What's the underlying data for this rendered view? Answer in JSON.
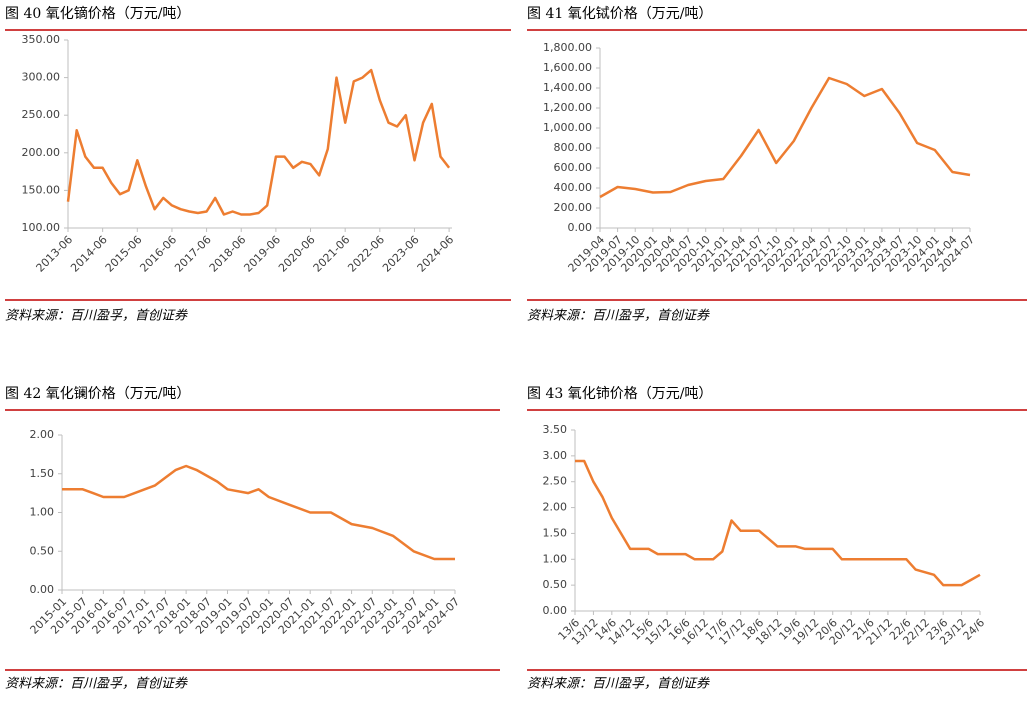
{
  "chart_data": [
    {
      "type": "line",
      "title": "图 40 氧化镝价格（万元/吨）",
      "source": "资料来源：百川盈孚，首创证券",
      "color": "#ed7d31",
      "x": [
        "2013-06",
        "2013-09",
        "2013-12",
        "2014-03",
        "2014-06",
        "2014-09",
        "2014-12",
        "2015-03",
        "2015-06",
        "2015-09",
        "2015-12",
        "2016-03",
        "2016-06",
        "2016-09",
        "2016-12",
        "2017-03",
        "2017-06",
        "2017-09",
        "2017-12",
        "2018-03",
        "2018-06",
        "2018-09",
        "2018-12",
        "2019-03",
        "2019-06",
        "2019-09",
        "2019-12",
        "2020-03",
        "2020-06",
        "2020-09",
        "2020-12",
        "2021-03",
        "2021-06",
        "2021-09",
        "2021-12",
        "2022-03",
        "2022-06",
        "2022-09",
        "2022-12",
        "2023-03",
        "2023-06",
        "2023-09",
        "2023-12",
        "2024-03",
        "2024-06"
      ],
      "values": [
        135,
        230,
        195,
        180,
        180,
        160,
        145,
        150,
        190,
        155,
        125,
        140,
        130,
        125,
        122,
        120,
        122,
        140,
        118,
        122,
        118,
        118,
        120,
        130,
        195,
        195,
        180,
        188,
        185,
        170,
        205,
        300,
        240,
        295,
        300,
        310,
        270,
        240,
        235,
        250,
        190,
        240,
        265,
        195,
        180
      ],
      "xlim": [
        "2013-06",
        "2024-07"
      ],
      "xticks": [
        "2013-06",
        "2014-06",
        "2015-06",
        "2016-06",
        "2017-06",
        "2018-06",
        "2019-06",
        "2020-06",
        "2021-06",
        "2022-06",
        "2023-06",
        "2024-06"
      ],
      "ylim": [
        100,
        350
      ],
      "yticks": [
        {
          "value": 100,
          "label": "100.00"
        },
        {
          "value": 150,
          "label": "150.00"
        },
        {
          "value": 200,
          "label": "200.00"
        },
        {
          "value": 250,
          "label": "250.00"
        },
        {
          "value": 300,
          "label": "300.00"
        },
        {
          "value": 350,
          "label": "350.00"
        }
      ]
    },
    {
      "type": "line",
      "title": "图 41 氧化铽价格（万元/吨）",
      "source": "资料来源：百川盈孚，首创证券",
      "color": "#ed7d31",
      "x": [
        "2019-04",
        "2019-07",
        "2019-10",
        "2020-01",
        "2020-04",
        "2020-07",
        "2020-10",
        "2021-01",
        "2021-04",
        "2021-07",
        "2021-10",
        "2022-01",
        "2022-04",
        "2022-07",
        "2022-10",
        "2023-01",
        "2023-04",
        "2023-07",
        "2023-10",
        "2024-01",
        "2024-04",
        "2024-07"
      ],
      "values": [
        310,
        410,
        390,
        355,
        360,
        430,
        470,
        490,
        720,
        980,
        650,
        870,
        1200,
        1500,
        1440,
        1320,
        1390,
        1150,
        850,
        780,
        560,
        530
      ],
      "xlim": [
        "2019-04",
        "2024-07"
      ],
      "xticks": [
        "2019-04",
        "2019-07",
        "2019-10",
        "2020-01",
        "2020-04",
        "2020-07",
        "2020-10",
        "2021-01",
        "2021-04",
        "2021-07",
        "2021-10",
        "2022-01",
        "2022-04",
        "2022-07",
        "2022-10",
        "2023-01",
        "2023-04",
        "2023-07",
        "2023-10",
        "2024-01",
        "2024-04",
        "2024-07"
      ],
      "ylim": [
        0,
        1800
      ],
      "yticks": [
        {
          "value": 0,
          "label": "0.00"
        },
        {
          "value": 200,
          "label": "200.00"
        },
        {
          "value": 400,
          "label": "400.00"
        },
        {
          "value": 600,
          "label": "600.00"
        },
        {
          "value": 800,
          "label": "800.00"
        },
        {
          "value": 1000,
          "label": "1,000.00"
        },
        {
          "value": 1200,
          "label": "1,200.00"
        },
        {
          "value": 1400,
          "label": "1,400.00"
        },
        {
          "value": 1600,
          "label": "1,600.00"
        },
        {
          "value": 1800,
          "label": "1,800.00"
        }
      ]
    },
    {
      "type": "line",
      "title": "图 42 氧化镧价格（万元/吨）",
      "source": "资料来源：百川盈孚，首创证券",
      "color": "#ed7d31",
      "x": [
        "2015-01",
        "2015-07",
        "2015-10",
        "2016-01",
        "2016-07",
        "2017-01",
        "2017-04",
        "2017-07",
        "2017-10",
        "2018-01",
        "2018-04",
        "2018-10",
        "2019-01",
        "2019-07",
        "2019-10",
        "2020-01",
        "2020-07",
        "2021-01",
        "2021-07",
        "2022-01",
        "2022-07",
        "2023-01",
        "2023-07",
        "2024-01",
        "2024-07"
      ],
      "values": [
        1.3,
        1.3,
        1.25,
        1.2,
        1.2,
        1.3,
        1.35,
        1.45,
        1.55,
        1.6,
        1.55,
        1.4,
        1.3,
        1.25,
        1.3,
        1.2,
        1.1,
        1.0,
        1.0,
        0.85,
        0.8,
        0.7,
        0.5,
        0.4,
        0.4
      ],
      "xlim": [
        "2015-01",
        "2024-07"
      ],
      "xticks": [
        "2015-01",
        "2015-07",
        "2016-01",
        "2016-07",
        "2017-01",
        "2017-07",
        "2018-01",
        "2018-07",
        "2019-01",
        "2019-07",
        "2020-01",
        "2020-07",
        "2021-01",
        "2021-07",
        "2022-01",
        "2022-07",
        "2023-01",
        "2023-07",
        "2024-01",
        "2024-07"
      ],
      "ylim": [
        0,
        2
      ],
      "yticks": [
        {
          "value": 0,
          "label": "0.00"
        },
        {
          "value": 0.5,
          "label": "0.50"
        },
        {
          "value": 1,
          "label": "1.00"
        },
        {
          "value": 1.5,
          "label": "1.50"
        },
        {
          "value": 2,
          "label": "2.00"
        }
      ]
    },
    {
      "type": "line",
      "title": "图 43 氧化铈价格（万元/吨）",
      "source": "资料来源：百川盈孚，首创证券",
      "color": "#ed7d31",
      "x": [
        "13/6",
        "13/9",
        "13/12",
        "14/3",
        "14/6",
        "14/9",
        "14/12",
        "15/6",
        "15/9",
        "16/6",
        "16/9",
        "17/3",
        "17/6",
        "17/9",
        "17/12",
        "18/6",
        "18/9",
        "18/12",
        "19/6",
        "19/9",
        "20/6",
        "20/9",
        "22/6",
        "22/9",
        "23/3",
        "23/6",
        "23/12",
        "24/3",
        "24/6"
      ],
      "values": [
        2.9,
        2.9,
        2.5,
        2.2,
        1.8,
        1.5,
        1.2,
        1.2,
        1.1,
        1.1,
        1.0,
        1.0,
        1.15,
        1.75,
        1.55,
        1.55,
        1.4,
        1.25,
        1.25,
        1.2,
        1.2,
        1.0,
        1.0,
        0.8,
        0.7,
        0.5,
        0.5,
        0.6,
        0.7
      ],
      "xlim": [
        "13/6",
        "24/6"
      ],
      "xticks": [
        "13/6",
        "13/12",
        "14/6",
        "14/12",
        "15/6",
        "15/12",
        "16/6",
        "16/12",
        "17/6",
        "17/12",
        "18/6",
        "18/12",
        "19/6",
        "19/12",
        "20/6",
        "20/12",
        "21/6",
        "21/12",
        "22/6",
        "22/12",
        "23/6",
        "23/12",
        "24/6"
      ],
      "ylim": [
        0,
        3.5
      ],
      "yticks": [
        {
          "value": 0,
          "label": "0.00"
        },
        {
          "value": 0.5,
          "label": "0.50"
        },
        {
          "value": 1,
          "label": "1.00"
        },
        {
          "value": 1.5,
          "label": "1.50"
        },
        {
          "value": 2,
          "label": "2.00"
        },
        {
          "value": 2.5,
          "label": "2.50"
        },
        {
          "value": 3,
          "label": "3.00"
        },
        {
          "value": 3.5,
          "label": "3.50"
        }
      ]
    }
  ]
}
